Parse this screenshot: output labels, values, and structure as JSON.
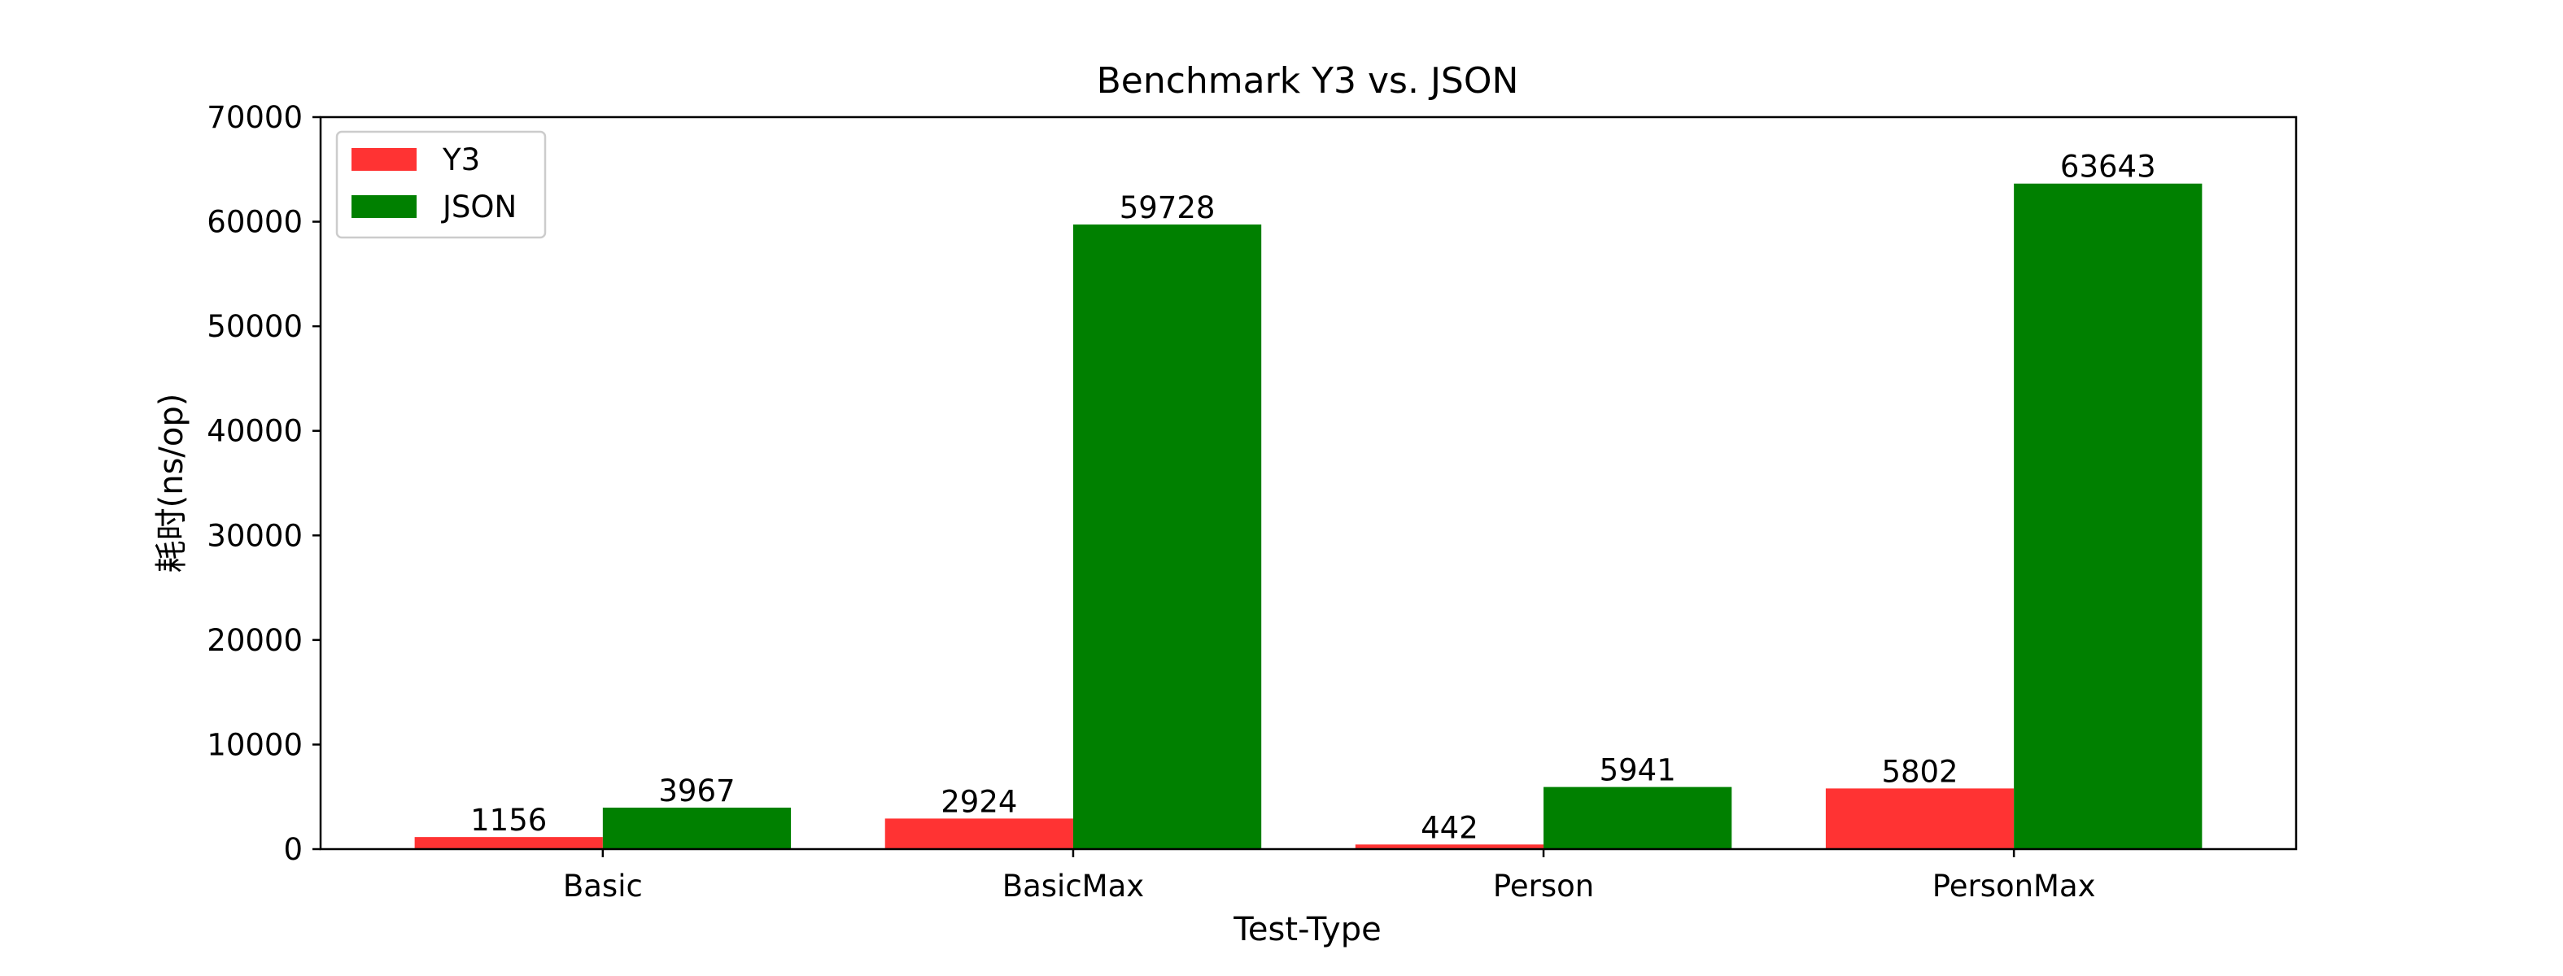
{
  "chart_data": {
    "type": "bar",
    "title": "Benchmark Y3 vs. JSON",
    "xlabel": "Test-Type",
    "ylabel": "耗时(ns/op)",
    "categories": [
      "Basic",
      "BasicMax",
      "Person",
      "PersonMax"
    ],
    "series": [
      {
        "name": "Y3",
        "color": "#ff3333",
        "values": [
          1156,
          2924,
          442,
          5802
        ]
      },
      {
        "name": "JSON",
        "color": "#008000",
        "values": [
          3967,
          59728,
          5941,
          63643
        ]
      }
    ],
    "ylim": [
      0,
      70000
    ],
    "yticks": [
      0,
      10000,
      20000,
      30000,
      40000,
      50000,
      60000,
      70000
    ],
    "grid": false,
    "legend_position": "top-left"
  }
}
